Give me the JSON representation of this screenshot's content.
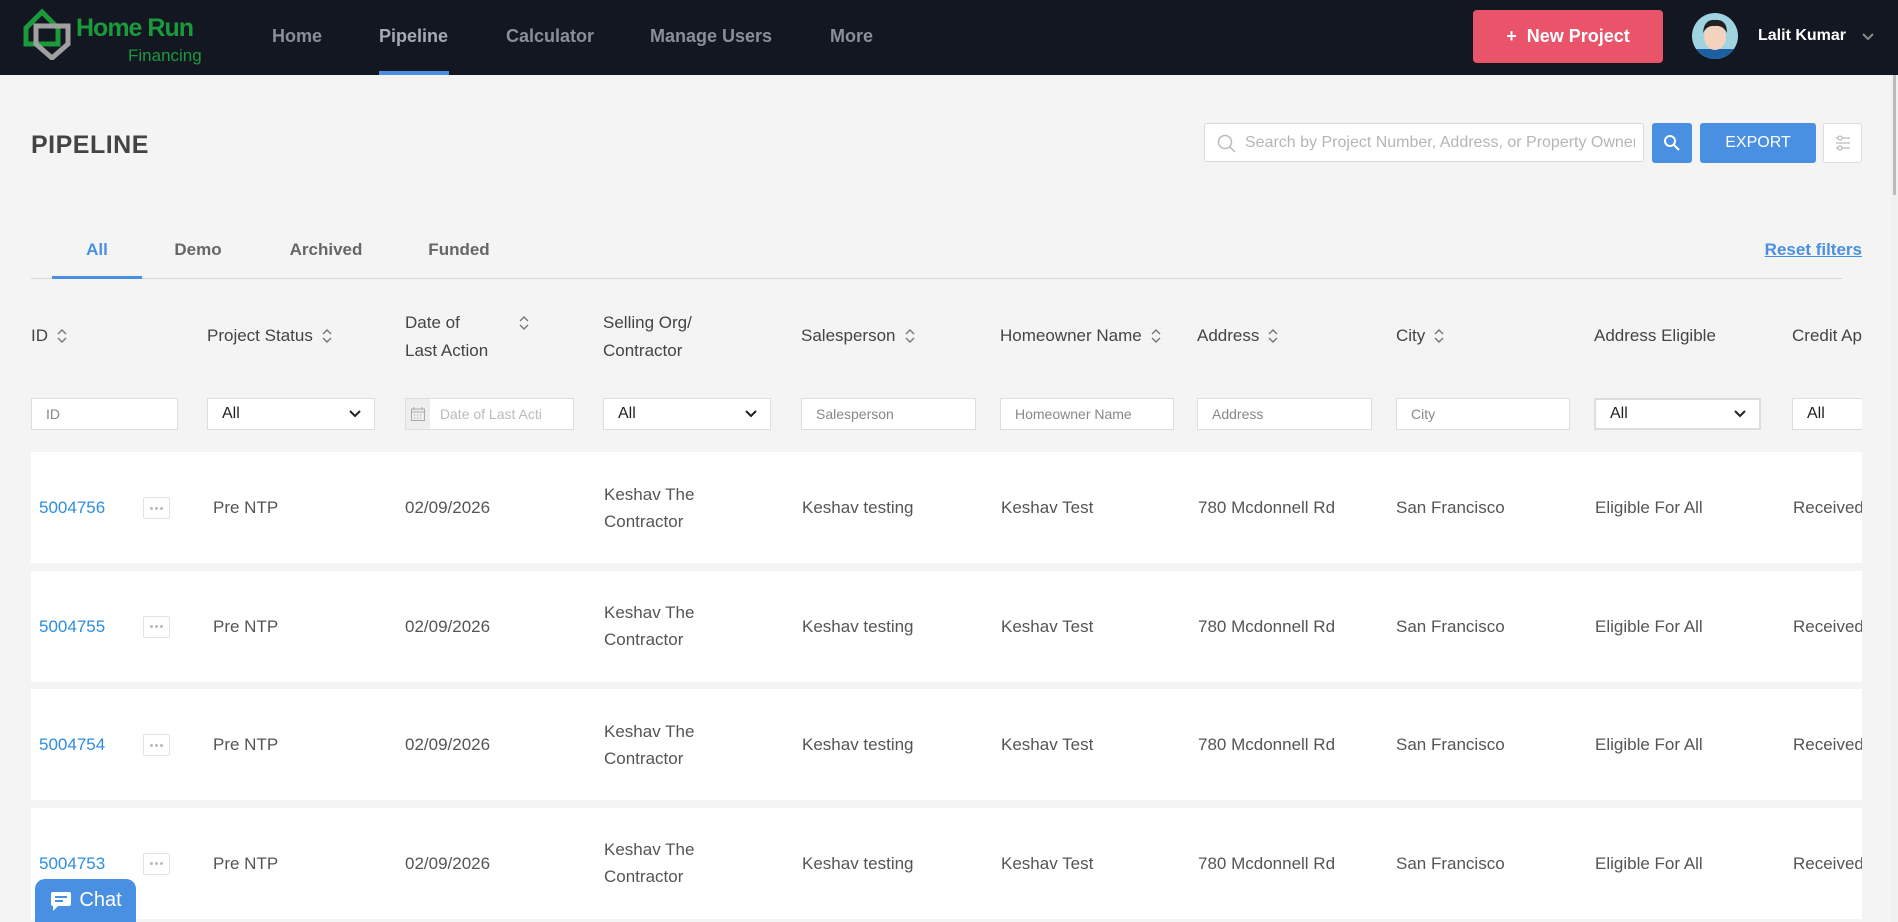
{
  "nav": {
    "logo_name": "Home Run",
    "logo_sub": "Financing",
    "items": [
      "Home",
      "Pipeline",
      "Calculator",
      "Manage Users",
      "More"
    ],
    "active": "Pipeline",
    "new_project": "New Project",
    "user_name": "Lalit Kumar"
  },
  "page": {
    "title": "PIPELINE",
    "search_placeholder": "Search by Project Number, Address, or Property Owner",
    "export": "EXPORT"
  },
  "tabs": {
    "items": [
      "All",
      "Demo",
      "Archived",
      "Funded"
    ],
    "active": "All",
    "reset": "Reset filters"
  },
  "columns": {
    "id": "ID",
    "status": "Project Status",
    "date_1": "Date of",
    "date_2": "Last Action",
    "org_1": "Selling Org/",
    "org_2": "Contractor",
    "sales": "Salesperson",
    "home": "Homeowner Name",
    "addr": "Address",
    "city": "City",
    "elig": "Address Eligible",
    "credit": "Credit Ap"
  },
  "filters": {
    "id": "ID",
    "status": "All",
    "date": "Date of Last Acti",
    "org": "All",
    "sales": "Salesperson",
    "home": "Homeowner Name",
    "addr": "Address",
    "city": "City",
    "elig": "All",
    "credit": "All"
  },
  "rows": [
    {
      "id": "5004756",
      "status": "Pre NTP",
      "date": "02/09/2026",
      "org_1": "Keshav The",
      "org_2": "Contractor",
      "sales": "Keshav testing",
      "home": "Keshav Test",
      "addr": "780 Mcdonnell Rd",
      "city": "San Francisco",
      "elig": "Eligible For All",
      "credit": "Received"
    },
    {
      "id": "5004755",
      "status": "Pre NTP",
      "date": "02/09/2026",
      "org_1": "Keshav The",
      "org_2": "Contractor",
      "sales": "Keshav testing",
      "home": "Keshav Test",
      "addr": "780 Mcdonnell Rd",
      "city": "San Francisco",
      "elig": "Eligible For All",
      "credit": "Received"
    },
    {
      "id": "5004754",
      "status": "Pre NTP",
      "date": "02/09/2026",
      "org_1": "Keshav The",
      "org_2": "Contractor",
      "sales": "Keshav testing",
      "home": "Keshav Test",
      "addr": "780 Mcdonnell Rd",
      "city": "San Francisco",
      "elig": "Eligible For All",
      "credit": "Received"
    },
    {
      "id": "5004753",
      "status": "Pre NTP",
      "date": "02/09/2026",
      "org_1": "Keshav The",
      "org_2": "Contractor",
      "sales": "Keshav testing",
      "home": "Keshav Test",
      "addr": "780 Mcdonnell Rd",
      "city": "San Francisco",
      "elig": "Eligible For All",
      "credit": "Received"
    }
  ],
  "chat": "Chat",
  "colors": {
    "nav_bg": "#131722",
    "accent": "#4a90e2",
    "new_project": "#e9546b",
    "brand_green": "#1a9a3a"
  }
}
